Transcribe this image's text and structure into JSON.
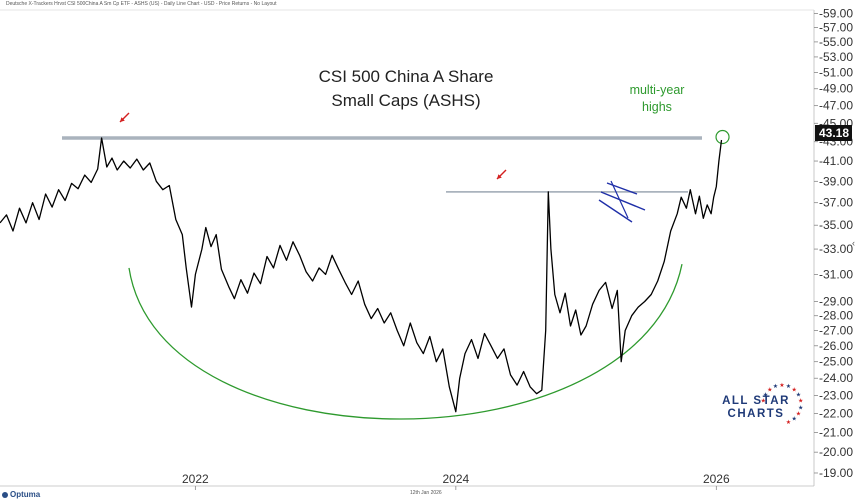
{
  "header": {
    "text": "Deutsche X-Trackers Hrvst CSI 500China A Sm Cp ETF - ASHS (US) - Daily Line Chart - USD - Price Returns - No Layout"
  },
  "footer": {
    "date": "12th Jan 2026",
    "logo": "Optuma"
  },
  "colors": {
    "line": "#000000",
    "resistance": "#aab3bd",
    "cup": "#2e9a2e",
    "arrow": "#d42020",
    "flag": "#1f2fa8",
    "annotation": "#2e9a2e",
    "badge": "#111111"
  },
  "brand_logo": {
    "line1": "ALL STAR",
    "line2": "CHARTS"
  },
  "chart_data": {
    "type": "line",
    "title": "CSI 500 China A Share",
    "subtitle": "Small Caps (ASHS)",
    "last_value_label": "43.18",
    "yscale": "log",
    "ylim": [
      18.4,
      59.5
    ],
    "xlim": [
      2020.5,
      2026.75
    ],
    "y_ticks": [
      "19.00",
      "20.00",
      "21.00",
      "22.00",
      "23.00",
      "24.00",
      "25.00",
      "26.00",
      "27.00",
      "28.00",
      "29.00",
      "31.00",
      "33.00",
      "35.00",
      "37.00",
      "39.00",
      "41.00",
      "43.00",
      "45.00",
      "47.00",
      "49.00",
      "51.00",
      "53.00",
      "55.00",
      "57.00",
      "59.00"
    ],
    "x_ticks": [
      "2022",
      "2024",
      "2026"
    ],
    "annotations": [
      {
        "text": "multi-year",
        "type": "label"
      },
      {
        "text": "highs",
        "type": "label"
      }
    ],
    "resistance_levels": [
      43.4,
      38.0
    ],
    "series": [
      {
        "values": [
          [
            2020.5,
            35.2
          ],
          [
            2020.55,
            35.9
          ],
          [
            2020.6,
            34.5
          ],
          [
            2020.65,
            36.5
          ],
          [
            2020.7,
            35.2
          ],
          [
            2020.75,
            37.0
          ],
          [
            2020.8,
            35.5
          ],
          [
            2020.85,
            37.8
          ],
          [
            2020.9,
            36.6
          ],
          [
            2020.95,
            38.2
          ],
          [
            2021.0,
            37.2
          ],
          [
            2021.05,
            38.8
          ],
          [
            2021.1,
            38.3
          ],
          [
            2021.15,
            39.6
          ],
          [
            2021.2,
            38.9
          ],
          [
            2021.25,
            40.2
          ],
          [
            2021.28,
            43.4
          ],
          [
            2021.32,
            40.4
          ],
          [
            2021.36,
            41.3
          ],
          [
            2021.4,
            40.1
          ],
          [
            2021.45,
            41.0
          ],
          [
            2021.5,
            40.3
          ],
          [
            2021.55,
            41.2
          ],
          [
            2021.6,
            40.1
          ],
          [
            2021.65,
            40.8
          ],
          [
            2021.7,
            39.0
          ],
          [
            2021.75,
            38.2
          ],
          [
            2021.8,
            38.6
          ],
          [
            2021.85,
            35.5
          ],
          [
            2021.9,
            34.2
          ],
          [
            2021.93,
            31.5
          ],
          [
            2021.97,
            28.6
          ],
          [
            2022.0,
            31.0
          ],
          [
            2022.05,
            33.0
          ],
          [
            2022.08,
            34.8
          ],
          [
            2022.12,
            33.2
          ],
          [
            2022.16,
            34.2
          ],
          [
            2022.2,
            31.4
          ],
          [
            2022.26,
            30.0
          ],
          [
            2022.3,
            29.2
          ],
          [
            2022.35,
            30.6
          ],
          [
            2022.4,
            29.6
          ],
          [
            2022.45,
            31.1
          ],
          [
            2022.5,
            30.3
          ],
          [
            2022.55,
            32.4
          ],
          [
            2022.6,
            31.5
          ],
          [
            2022.65,
            33.3
          ],
          [
            2022.7,
            32.1
          ],
          [
            2022.75,
            33.6
          ],
          [
            2022.8,
            32.5
          ],
          [
            2022.85,
            31.2
          ],
          [
            2022.9,
            30.5
          ],
          [
            2022.95,
            31.5
          ],
          [
            2023.0,
            31.0
          ],
          [
            2023.05,
            32.5
          ],
          [
            2023.1,
            31.4
          ],
          [
            2023.15,
            30.4
          ],
          [
            2023.2,
            29.5
          ],
          [
            2023.25,
            30.5
          ],
          [
            2023.3,
            28.8
          ],
          [
            2023.35,
            27.8
          ],
          [
            2023.4,
            28.5
          ],
          [
            2023.45,
            27.5
          ],
          [
            2023.5,
            28.2
          ],
          [
            2023.55,
            27.0
          ],
          [
            2023.6,
            26.0
          ],
          [
            2023.65,
            27.5
          ],
          [
            2023.7,
            26.2
          ],
          [
            2023.75,
            25.5
          ],
          [
            2023.8,
            26.6
          ],
          [
            2023.85,
            25.0
          ],
          [
            2023.9,
            25.8
          ],
          [
            2023.95,
            23.5
          ],
          [
            2024.0,
            22.1
          ],
          [
            2024.03,
            24.0
          ],
          [
            2024.07,
            25.5
          ],
          [
            2024.12,
            26.4
          ],
          [
            2024.17,
            25.2
          ],
          [
            2024.22,
            26.8
          ],
          [
            2024.27,
            26.0
          ],
          [
            2024.32,
            25.2
          ],
          [
            2024.37,
            25.8
          ],
          [
            2024.42,
            24.2
          ],
          [
            2024.47,
            23.6
          ],
          [
            2024.52,
            24.4
          ],
          [
            2024.57,
            23.5
          ],
          [
            2024.62,
            23.1
          ],
          [
            2024.66,
            23.3
          ],
          [
            2024.69,
            27.0
          ],
          [
            2024.71,
            38.0
          ],
          [
            2024.73,
            33.0
          ],
          [
            2024.76,
            29.5
          ],
          [
            2024.8,
            28.2
          ],
          [
            2024.84,
            29.6
          ],
          [
            2024.88,
            27.3
          ],
          [
            2024.92,
            28.4
          ],
          [
            2024.96,
            26.7
          ],
          [
            2025.0,
            27.3
          ],
          [
            2025.05,
            28.8
          ],
          [
            2025.1,
            29.8
          ],
          [
            2025.15,
            30.4
          ],
          [
            2025.2,
            28.5
          ],
          [
            2025.24,
            29.8
          ],
          [
            2025.27,
            25.0
          ],
          [
            2025.3,
            27.0
          ],
          [
            2025.35,
            28.0
          ],
          [
            2025.4,
            28.6
          ],
          [
            2025.45,
            29.0
          ],
          [
            2025.5,
            29.5
          ],
          [
            2025.55,
            30.5
          ],
          [
            2025.6,
            32.0
          ],
          [
            2025.65,
            34.5
          ],
          [
            2025.7,
            36.0
          ],
          [
            2025.73,
            37.5
          ],
          [
            2025.77,
            36.5
          ],
          [
            2025.8,
            38.2
          ],
          [
            2025.84,
            36.0
          ],
          [
            2025.87,
            37.6
          ],
          [
            2025.9,
            35.6
          ],
          [
            2025.93,
            36.8
          ],
          [
            2025.96,
            36.0
          ],
          [
            2025.98,
            37.5
          ],
          [
            2026.0,
            38.5
          ],
          [
            2026.02,
            41.0
          ],
          [
            2026.04,
            43.18
          ]
        ]
      }
    ]
  }
}
